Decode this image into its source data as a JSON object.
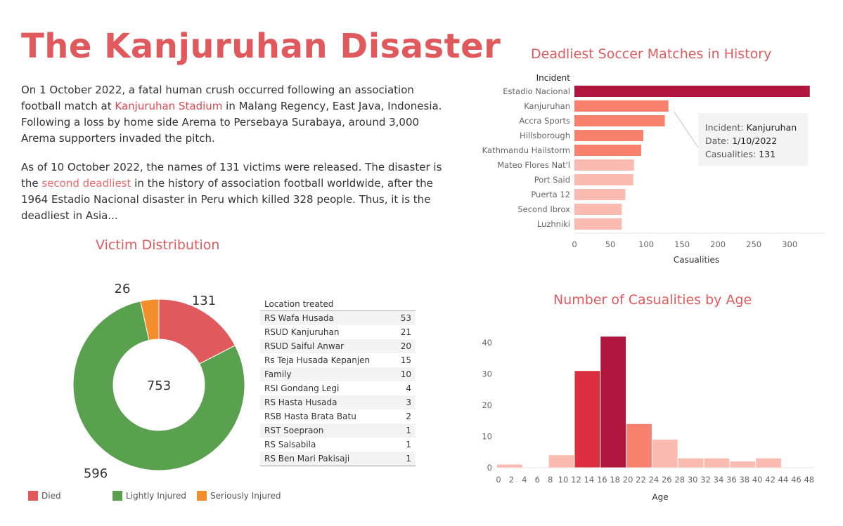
{
  "page": {
    "title": "The Kanjuruhan Disaster",
    "p1_a": "On 1 October 2022, a fatal human crush occurred following an association football match at ",
    "p1_link": "Kanjuruhan Stadium",
    "p1_b": " in Malang Regency, East Java, Indonesia. Following a loss by home side Arema to Persebaya Surabaya, around 3,000 Arema supporters invaded the pitch.",
    "p2_a": "As of 10 October 2022, the names of 131 victims were released. The disaster is the ",
    "p2_link": "second deadliest",
    "p2_b": " in the history of association football worldwide, after the 1964 Estadio Nacional disaster in Peru which killed 328 people. Thus, it is the deadliest in Asia..."
  },
  "tooltip": {
    "incident_label": "Incident:",
    "incident_value": "Kanjuruhan",
    "date_label": "Date:",
    "date_value": "1/10/2022",
    "casualities_label": "Casualities:",
    "casualities_value": "131"
  },
  "chart_data": [
    {
      "type": "pie",
      "title": "Victim Distribution",
      "center_label": "753",
      "slices": [
        {
          "label": "Died",
          "value": 131,
          "color": "#e05a5d"
        },
        {
          "label": "Lightly Injured",
          "value": 596,
          "color": "#59a14f"
        },
        {
          "label": "Seriously Injured",
          "value": 26,
          "color": "#f28e2b"
        }
      ]
    },
    {
      "type": "table",
      "columns": [
        "Location treated",
        ""
      ],
      "rows": [
        [
          "RS Wafa Husada",
          "53"
        ],
        [
          "RSUD Kanjuruhan",
          "21"
        ],
        [
          "RSUD Saiful Anwar",
          "20"
        ],
        [
          "Rs Teja Husada Kepanjen",
          "15"
        ],
        [
          "Family",
          "10"
        ],
        [
          "RSI Gondang Legi",
          "4"
        ],
        [
          "RS Hasta Husada",
          "3"
        ],
        [
          "RSB Hasta Brata Batu",
          "2"
        ],
        [
          "RST Soepraon",
          "1"
        ],
        [
          "RS Salsabila",
          "1"
        ],
        [
          "RS Ben Mari Pakisaji",
          "1"
        ]
      ]
    },
    {
      "type": "bar",
      "orientation": "horizontal",
      "title": "Deadliest Soccer Matches in History",
      "category_header": "Incident",
      "xlabel": "Casualities",
      "xlim": [
        0,
        340
      ],
      "xticks": [
        0,
        50,
        100,
        150,
        200,
        250,
        300
      ],
      "categories": [
        "Estadio Nacional",
        "Kanjuruhan",
        "Accra Sports",
        "Hillsborough",
        "Kathmandu Hailstorm",
        "Mateo Flores Nat'l",
        "Port Said",
        "Puerta 12",
        "Second Ibrox",
        "Luzhniki"
      ],
      "values": [
        328,
        131,
        126,
        96,
        93,
        83,
        82,
        71,
        66,
        66
      ],
      "colors": [
        "#b0153e",
        "#f8806d",
        "#f8806d",
        "#f8806d",
        "#f8806d",
        "#fbbbb0",
        "#fbbbb0",
        "#fbbbb0",
        "#fbbbb0",
        "#fbbbb0"
      ]
    },
    {
      "type": "bar",
      "title": "Number of Casualities by Age",
      "xlabel": "Age",
      "ylabel": "",
      "ylim": [
        0,
        45
      ],
      "yticks": [
        0,
        10,
        20,
        30,
        40
      ],
      "xticks": [
        0,
        2,
        4,
        6,
        8,
        10,
        12,
        14,
        16,
        18,
        20,
        22,
        24,
        26,
        28,
        30,
        32,
        34,
        36,
        38,
        40,
        42,
        44,
        46,
        48
      ],
      "bins": [
        {
          "start": 0,
          "end": 4,
          "value": 1,
          "color": "#fbbbb0"
        },
        {
          "start": 4,
          "end": 8,
          "value": 0,
          "color": "#fbbbb0"
        },
        {
          "start": 8,
          "end": 12,
          "value": 4,
          "color": "#fbbbb0"
        },
        {
          "start": 12,
          "end": 16,
          "value": 31,
          "color": "#dc3040"
        },
        {
          "start": 16,
          "end": 20,
          "value": 42,
          "color": "#b0153e"
        },
        {
          "start": 20,
          "end": 24,
          "value": 14,
          "color": "#f8806d"
        },
        {
          "start": 24,
          "end": 28,
          "value": 9,
          "color": "#fbbbb0"
        },
        {
          "start": 28,
          "end": 32,
          "value": 3,
          "color": "#fbbbb0"
        },
        {
          "start": 32,
          "end": 36,
          "value": 3,
          "color": "#fbbbb0"
        },
        {
          "start": 36,
          "end": 40,
          "value": 2,
          "color": "#fbbbb0"
        },
        {
          "start": 40,
          "end": 44,
          "value": 3,
          "color": "#fbbbb0"
        }
      ]
    }
  ]
}
